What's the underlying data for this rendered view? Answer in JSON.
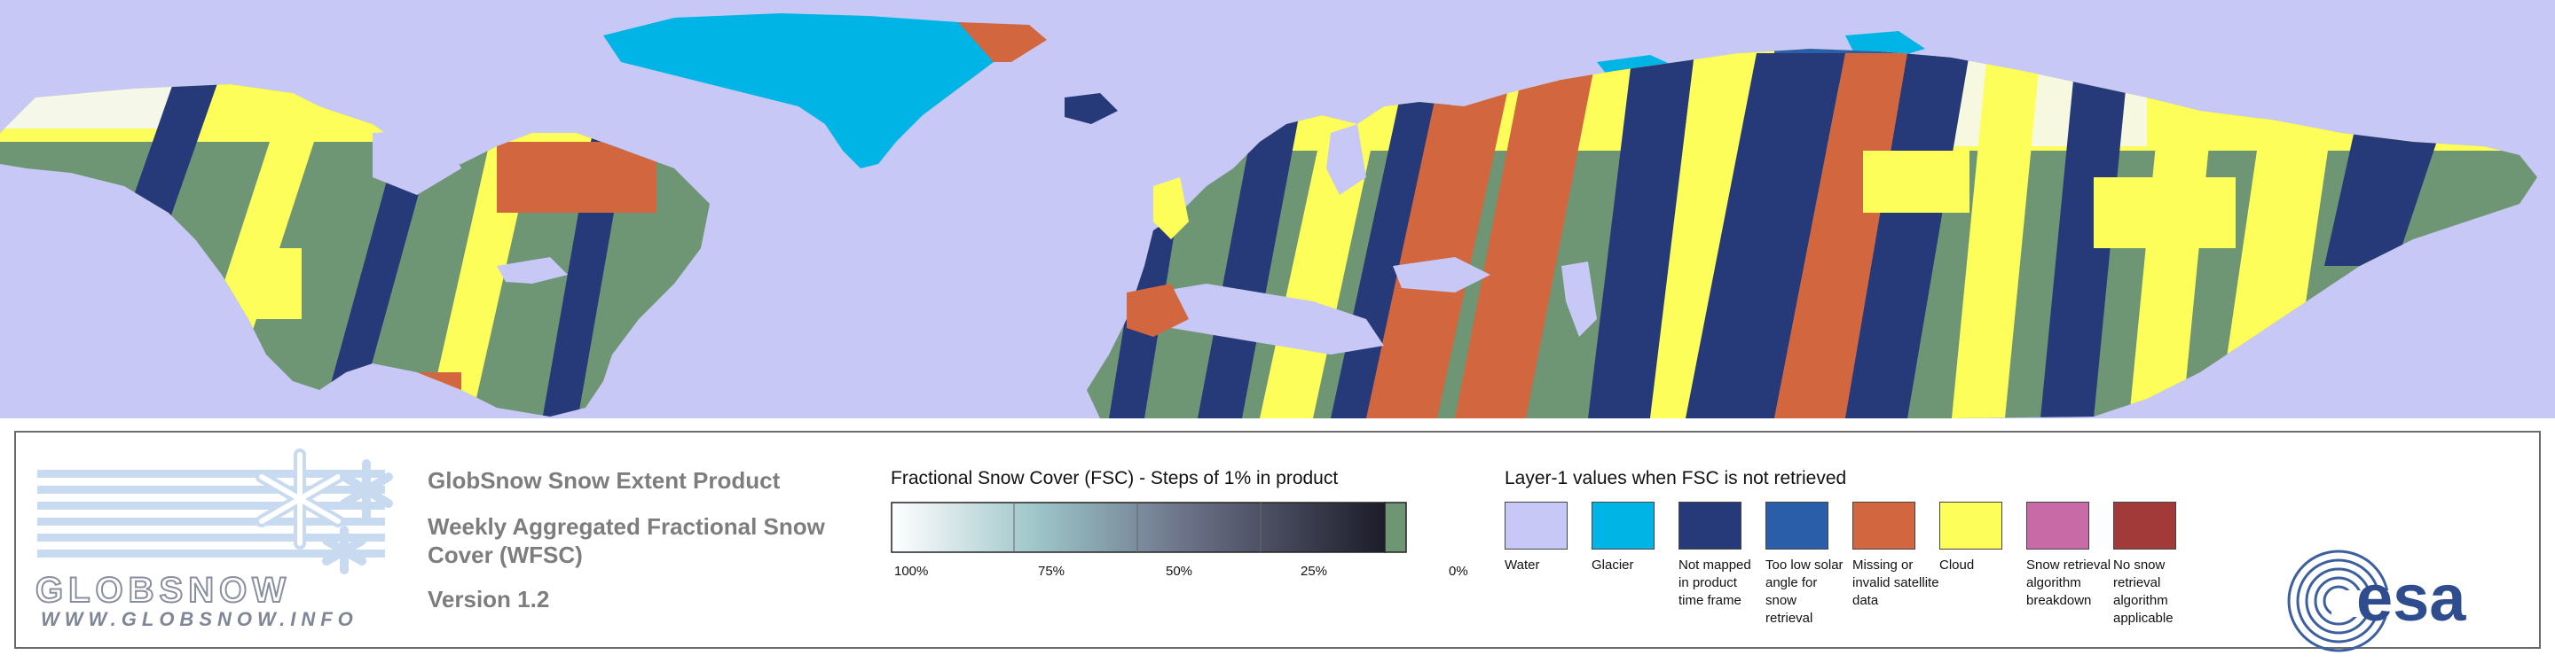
{
  "map": {
    "colors": {
      "water": "#c8c8f7",
      "glacier": "#00b5e6",
      "not_mapped": "#263a7a",
      "low_solar": "#2b5ea8",
      "missing": "#d2663f",
      "cloud": "#fefe5a",
      "snow_breakdown": "#c86aa5",
      "no_retrieval": "#a33a3a",
      "snow_free": "#6e9674",
      "snow_white": "#f4f7f8"
    }
  },
  "logo": {
    "wordmark": "GLOBSNOW",
    "url": "WWW.GLOBSNOW.INFO"
  },
  "product": {
    "title": "GlobSnow Snow Extent Product",
    "subtitle_line1": "Weekly Aggregated Fractional Snow",
    "subtitle_line2": "Cover (WFSC)",
    "version": "Version 1.2"
  },
  "fsc_legend": {
    "title": "Fractional Snow Cover (FSC) - Steps of 1% in product",
    "ticks": [
      "100%",
      "75%",
      "50%",
      "25%",
      "0%"
    ]
  },
  "layer1_legend": {
    "title": "Layer-1 values when FSC is not retrieved",
    "items": [
      {
        "label": "Water",
        "color": "#c8c8f7"
      },
      {
        "label": "Glacier",
        "color": "#00b5e6"
      },
      {
        "label": "Not mapped in product time frame",
        "color": "#263a7a"
      },
      {
        "label": "Too low solar angle for snow retrieval",
        "color": "#2b5ea8"
      },
      {
        "label": "Missing or invalid satellite data",
        "color": "#d2663f"
      },
      {
        "label": "Cloud",
        "color": "#fefe5a"
      },
      {
        "label": "Snow retrieval algorithm breakdown",
        "color": "#c86aa5"
      },
      {
        "label": "No snow retrieval algorithm applicable",
        "color": "#a33a3a"
      }
    ]
  },
  "esa_logo": {
    "text": "esa"
  }
}
